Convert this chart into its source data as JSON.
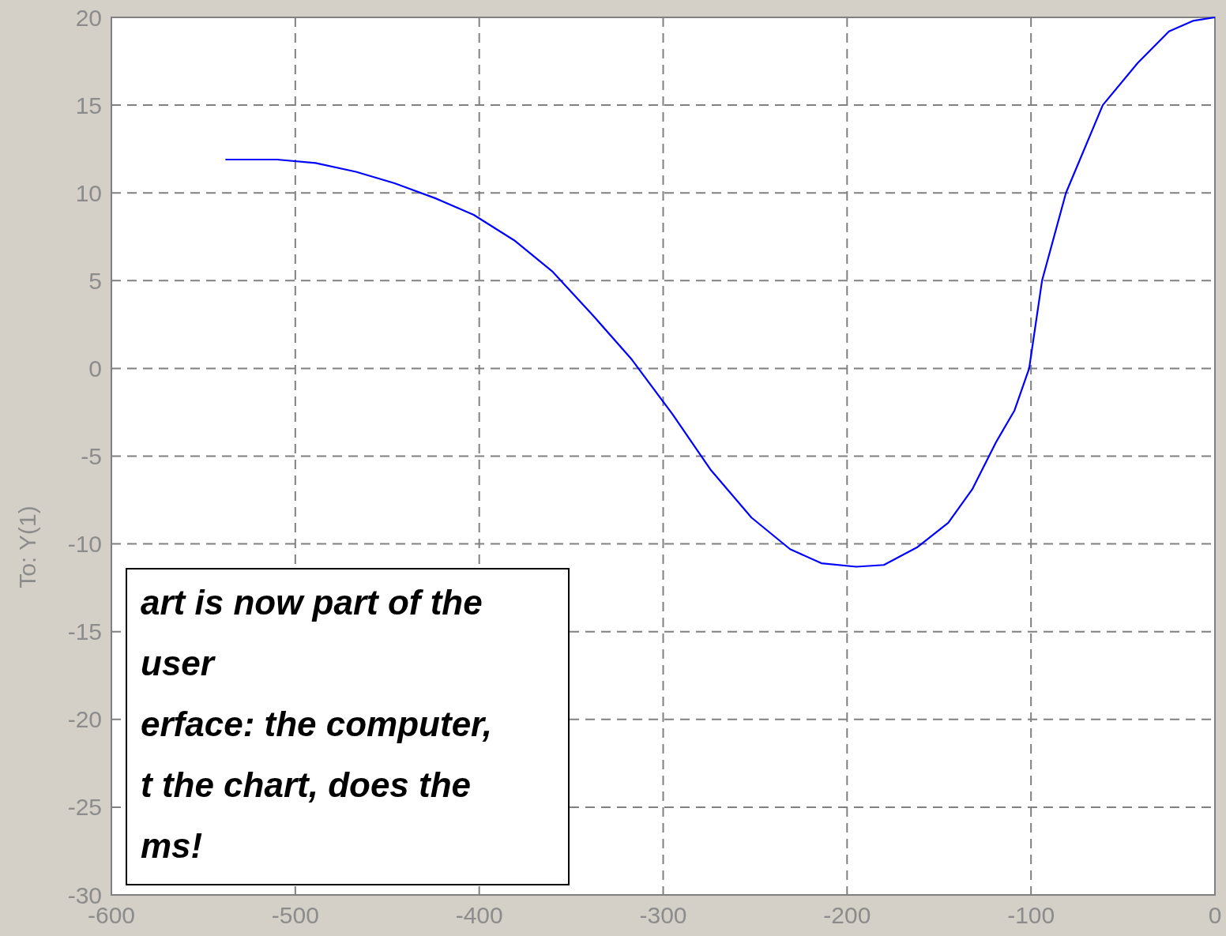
{
  "chart_data": {
    "type": "line",
    "ylabel": "To: Y(1)",
    "x": [
      -538,
      -510,
      -489,
      -467,
      -446,
      -424,
      -403,
      -381,
      -360,
      -338,
      -317,
      -295,
      -274,
      -252,
      -231,
      -214,
      -195,
      -180,
      -162,
      -145,
      -132,
      -119,
      -109,
      -101,
      -94,
      -81,
      -61,
      -42,
      -25,
      -12,
      0
    ],
    "series": [
      {
        "color": "#0000ff",
        "values": [
          11.9,
          11.9,
          11.7,
          11.2,
          10.55,
          9.7,
          8.75,
          7.3,
          5.5,
          3.0,
          0.5,
          -2.6,
          -5.8,
          -8.5,
          -10.3,
          -11.1,
          -11.3,
          -11.2,
          -10.2,
          -8.8,
          -6.9,
          -4.2,
          -2.4,
          0,
          5,
          10,
          15,
          17.4,
          19.2,
          19.8,
          20
        ]
      }
    ],
    "xlim": [
      -600,
      0
    ],
    "ylim": [
      -30,
      20
    ],
    "xticks": [
      -600,
      -500,
      -400,
      -300,
      -200,
      -100,
      0
    ],
    "yticks": [
      -30,
      -25,
      -20,
      -15,
      -10,
      -5,
      0,
      5,
      10,
      15,
      20
    ],
    "grid": true,
    "line_style": "solid",
    "annotations": [
      "art is now part of the\nuser\nerface: the computer,\nt the chart,  does the\nms!"
    ]
  }
}
